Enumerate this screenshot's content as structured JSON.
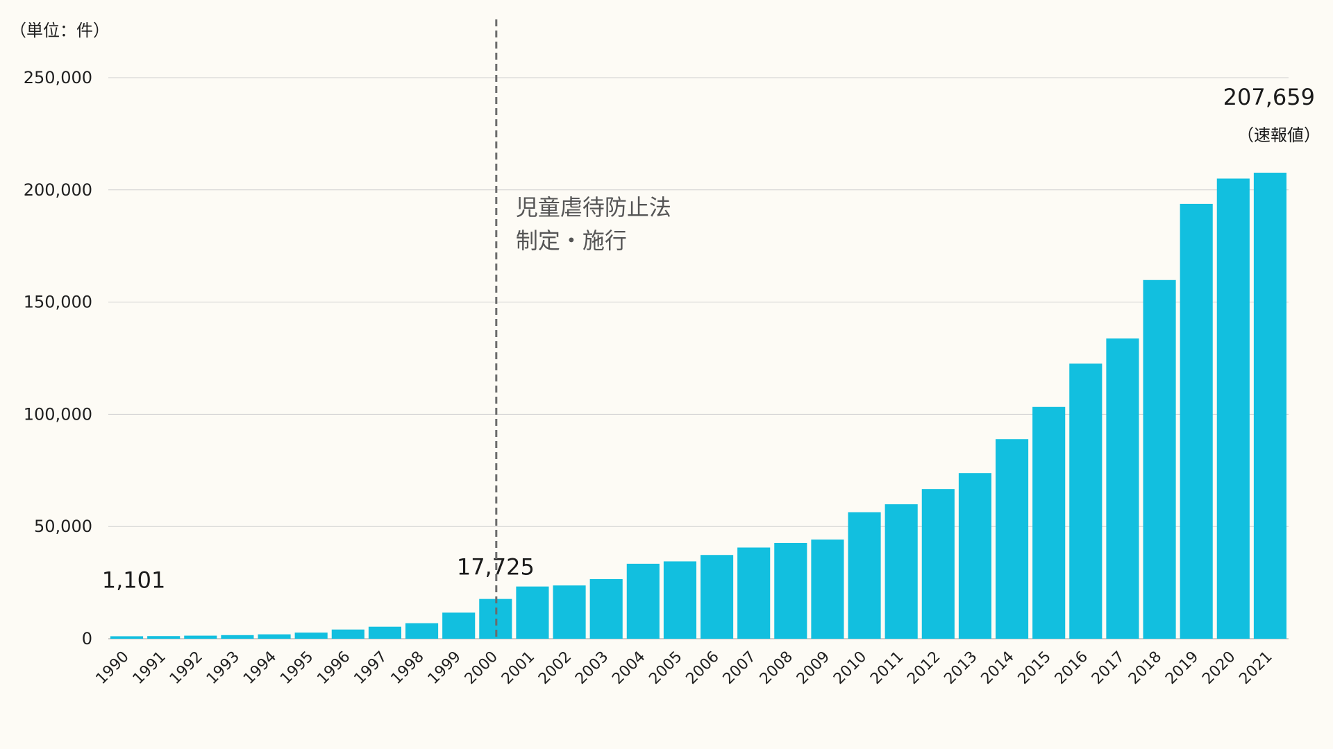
{
  "chart_data": {
    "type": "bar",
    "title": "",
    "unit_label": "（単位：件）",
    "xlabel": "",
    "ylabel": "",
    "ylim": [
      0,
      250000
    ],
    "yticks": [
      0,
      50000,
      100000,
      150000,
      200000,
      250000
    ],
    "ytick_labels": [
      "0",
      "50,000",
      "100,000",
      "150,000",
      "200,000",
      "250,000"
    ],
    "grid": true,
    "bar_color": "#12bfdf",
    "categories": [
      "1990",
      "1991",
      "1992",
      "1993",
      "1994",
      "1995",
      "1996",
      "1997",
      "1998",
      "1999",
      "2000",
      "2001",
      "2002",
      "2003",
      "2004",
      "2005",
      "2006",
      "2007",
      "2008",
      "2009",
      "2010",
      "2011",
      "2012",
      "2013",
      "2014",
      "2015",
      "2016",
      "2017",
      "2018",
      "2019",
      "2020",
      "2021"
    ],
    "values": [
      1101,
      1171,
      1372,
      1611,
      1961,
      2722,
      4102,
      5352,
      6932,
      11631,
      17725,
      23274,
      23738,
      26569,
      33408,
      34472,
      37323,
      40639,
      42664,
      44211,
      56384,
      59919,
      66701,
      73802,
      88931,
      103286,
      122575,
      133778,
      159838,
      193780,
      205044,
      207659
    ],
    "annotations": [
      {
        "category": "1990",
        "text": "1,101"
      },
      {
        "category": "2000",
        "text": "17,725"
      },
      {
        "category": "2021",
        "text": "207,659",
        "note": "（速報値）"
      }
    ],
    "event_marker": {
      "category": "2000",
      "style": "dashed",
      "color": "#6b6b6b",
      "lines": [
        "児童虐待防止法",
        "制定・施行"
      ]
    }
  }
}
